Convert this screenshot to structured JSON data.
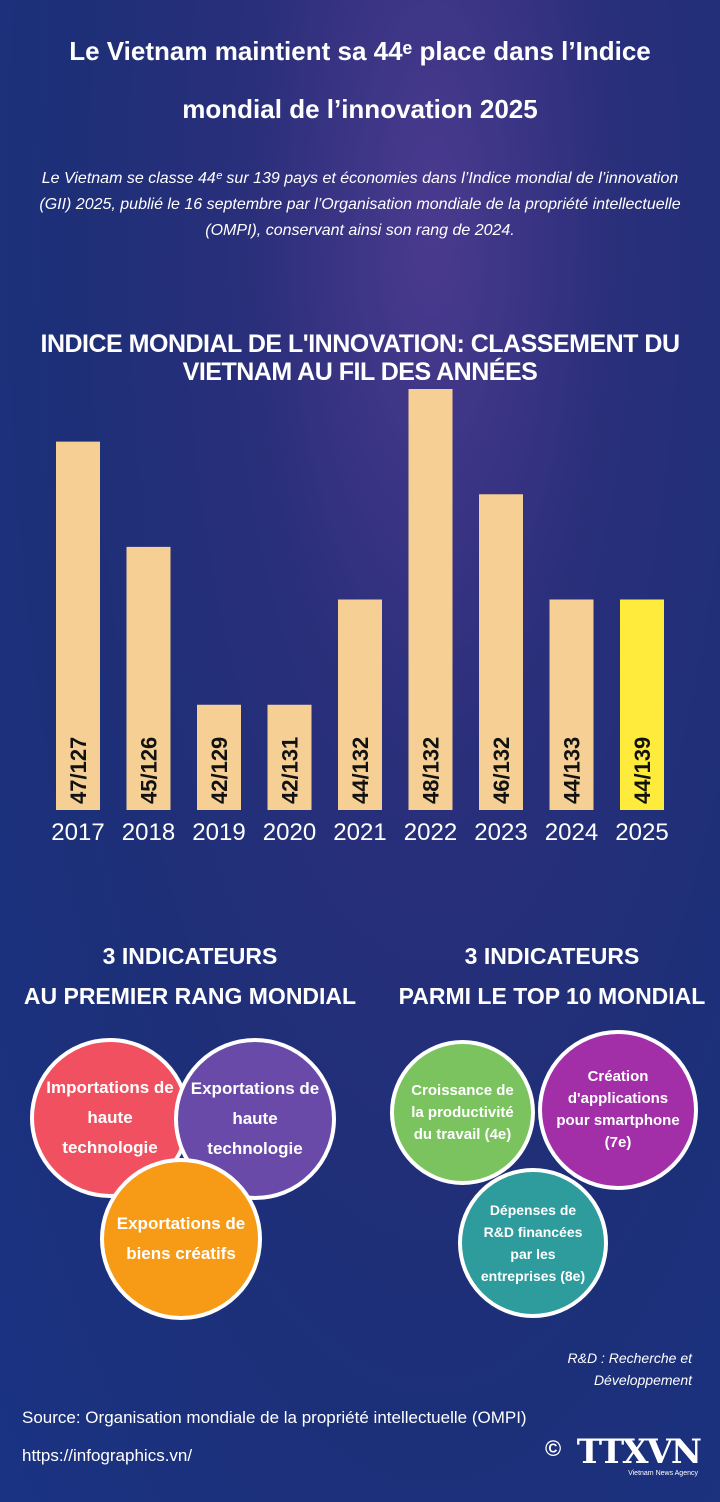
{
  "header": {
    "title": "Le Vietnam maintient sa 44ᵉ place dans l’Indice mondial de l’innovation 2025",
    "subtitle": "Le Vietnam se classe 44ᵉ sur 139 pays et économies dans l’Indice mondial de l’innovation (GII) 2025, publié le 16 septembre par l’Organisation mondiale de la propriété intellectuelle (OMPI), conservant ainsi son rang de 2024."
  },
  "chart_data": {
    "type": "bar",
    "title": "INDICE MONDIAL DE L'INNOVATION: CLASSEMENT DU VIETNAM AU FIL DES ANNÉES",
    "categories": [
      "2017",
      "2018",
      "2019",
      "2020",
      "2021",
      "2022",
      "2023",
      "2024",
      "2025"
    ],
    "values": [
      47,
      45,
      42,
      42,
      44,
      48,
      46,
      44,
      44
    ],
    "value_labels": [
      "47/127",
      "45/126",
      "42/129",
      "42/131",
      "44/132",
      "48/132",
      "46/132",
      "44/133",
      "44/139"
    ],
    "colors": [
      "#f5cf94",
      "#f5cf94",
      "#f5cf94",
      "#f5cf94",
      "#f5cf94",
      "#f5cf94",
      "#f5cf94",
      "#f5cf94",
      "#ffeb3b"
    ],
    "ylim": [
      40,
      48
    ]
  },
  "sections": [
    {
      "heading": [
        "3 INDICATEURS",
        "AU PREMIER RANG MONDIAL"
      ],
      "items": [
        "Importations de haute technologie",
        "Exportations de haute technologie",
        "Exportations de biens créatifs"
      ]
    },
    {
      "heading": [
        "3 INDICATEURS",
        "PARMI LE TOP 10 MONDIAL"
      ],
      "items": [
        "Croissance de la productivité du travail (4e)",
        "Création d'applications pour smartphone (7e)",
        "Dépenses de R&D financées par les entreprises (8e)"
      ]
    }
  ],
  "footer": {
    "note": "R&D : Recherche et Développement",
    "source": "Source: Organisation mondiale de la propriété intellectuelle (OMPI)",
    "url": "https://infographics.vn/",
    "copyright": "©",
    "logo": "TTXVN",
    "logo_sub": "Vietnam News Agency"
  }
}
